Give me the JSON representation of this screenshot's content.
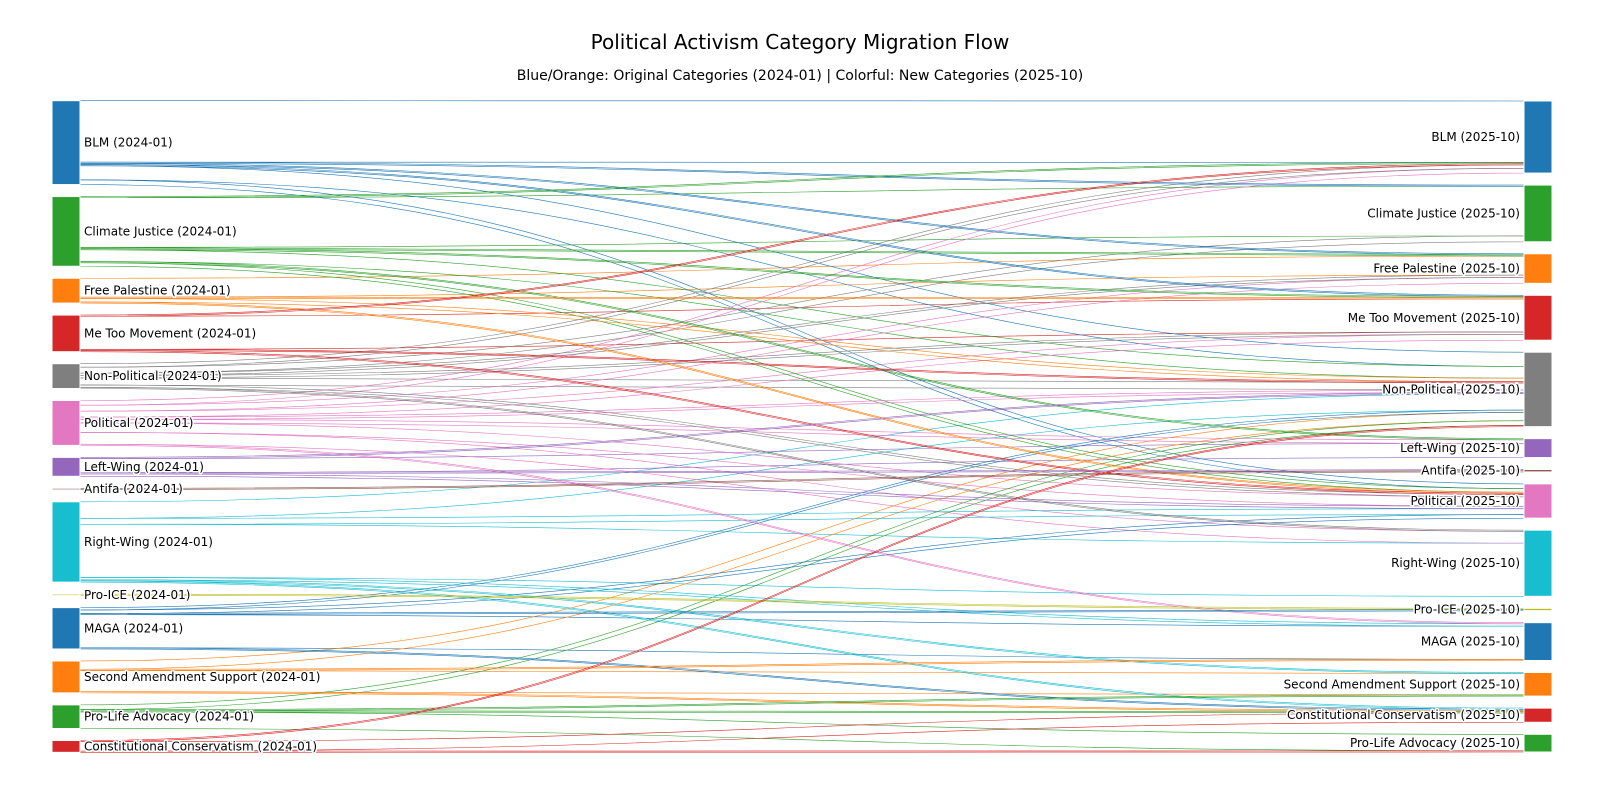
{
  "chart_data": {
    "type": "sankey",
    "title": "Political Activism Category Migration Flow",
    "subtitle": "Blue/Orange: Original Categories (2024-01) | Colorful: New Categories (2025-10)",
    "source_nodes": [
      {
        "label": "BLM (2024-01)",
        "color": "#1f77b4"
      },
      {
        "label": "Climate Justice (2024-01)",
        "color": "#2ca02c"
      },
      {
        "label": "Free Palestine (2024-01)",
        "color": "#ff7f0e"
      },
      {
        "label": "Me Too Movement (2024-01)",
        "color": "#d62728"
      },
      {
        "label": "Non-Political (2024-01)",
        "color": "#7f7f7f"
      },
      {
        "label": "Political (2024-01)",
        "color": "#e377c2"
      },
      {
        "label": "Left-Wing (2024-01)",
        "color": "#9467bd"
      },
      {
        "label": "Antifa (2024-01)",
        "color": "#8c564b"
      },
      {
        "label": "Right-Wing (2024-01)",
        "color": "#17becf"
      },
      {
        "label": "Pro-ICE (2024-01)",
        "color": "#bcbd22"
      },
      {
        "label": "MAGA (2024-01)",
        "color": "#1f77b4"
      },
      {
        "label": "Second Amendment Support (2024-01)",
        "color": "#ff7f0e"
      },
      {
        "label": "Pro-Life Advocacy (2024-01)",
        "color": "#2ca02c"
      },
      {
        "label": "Constitutional Conservatism (2024-01)",
        "color": "#d62728"
      }
    ],
    "target_nodes": [
      {
        "label": "BLM (2025-10)",
        "color": "#1f77b4"
      },
      {
        "label": "Climate Justice (2025-10)",
        "color": "#2ca02c"
      },
      {
        "label": "Free Palestine (2025-10)",
        "color": "#ff7f0e"
      },
      {
        "label": "Me Too Movement (2025-10)",
        "color": "#d62728"
      },
      {
        "label": "Non-Political (2025-10)",
        "color": "#7f7f7f"
      },
      {
        "label": "Left-Wing (2025-10)",
        "color": "#9467bd"
      },
      {
        "label": "Antifa (2025-10)",
        "color": "#8c564b"
      },
      {
        "label": "Political (2025-10)",
        "color": "#e377c2"
      },
      {
        "label": "Right-Wing (2025-10)",
        "color": "#17becf"
      },
      {
        "label": "Pro-ICE (2025-10)",
        "color": "#bcbd22"
      },
      {
        "label": "MAGA (2025-10)",
        "color": "#1f77b4"
      },
      {
        "label": "Second Amendment Support (2025-10)",
        "color": "#ff7f0e"
      },
      {
        "label": "Constitutional Conservatism (2025-10)",
        "color": "#d62728"
      },
      {
        "label": "Pro-Life Advocacy (2025-10)",
        "color": "#2ca02c"
      }
    ],
    "links": [
      {
        "source": 0,
        "target": 0,
        "value": 52
      },
      {
        "source": 0,
        "target": 4,
        "value": 12
      },
      {
        "source": 0,
        "target": 7,
        "value": 4
      },
      {
        "source": 0,
        "target": 1,
        "value": 1
      },
      {
        "source": 0,
        "target": 3,
        "value": 1
      },
      {
        "source": 0,
        "target": 2,
        "value": 1
      },
      {
        "source": 1,
        "target": 1,
        "value": 42
      },
      {
        "source": 1,
        "target": 4,
        "value": 10
      },
      {
        "source": 1,
        "target": 7,
        "value": 3
      },
      {
        "source": 1,
        "target": 5,
        "value": 1
      },
      {
        "source": 1,
        "target": 0,
        "value": 1
      },
      {
        "source": 1,
        "target": 2,
        "value": 1
      },
      {
        "source": 1,
        "target": 3,
        "value": 1
      },
      {
        "source": 2,
        "target": 2,
        "value": 16
      },
      {
        "source": 2,
        "target": 4,
        "value": 3
      },
      {
        "source": 2,
        "target": 7,
        "value": 1
      },
      {
        "source": 2,
        "target": 3,
        "value": 1
      },
      {
        "source": 3,
        "target": 3,
        "value": 28
      },
      {
        "source": 3,
        "target": 4,
        "value": 1
      },
      {
        "source": 3,
        "target": 7,
        "value": 1
      },
      {
        "source": 3,
        "target": 0,
        "value": 1
      },
      {
        "source": 4,
        "target": 1,
        "value": 5
      },
      {
        "source": 4,
        "target": 2,
        "value": 2
      },
      {
        "source": 4,
        "target": 0,
        "value": 3
      },
      {
        "source": 4,
        "target": 3,
        "value": 2
      },
      {
        "source": 4,
        "target": 4,
        "value": 6
      },
      {
        "source": 4,
        "target": 7,
        "value": 2
      },
      {
        "source": 4,
        "target": 8,
        "value": 1
      },
      {
        "source": 5,
        "target": 0,
        "value": 4
      },
      {
        "source": 5,
        "target": 2,
        "value": 5
      },
      {
        "source": 5,
        "target": 3,
        "value": 5
      },
      {
        "source": 5,
        "target": 7,
        "value": 8
      },
      {
        "source": 5,
        "target": 5,
        "value": 3
      },
      {
        "source": 5,
        "target": 4,
        "value": 2
      },
      {
        "source": 5,
        "target": 8,
        "value": 10
      },
      {
        "source": 5,
        "target": 10,
        "value": 1
      },
      {
        "source": 6,
        "target": 5,
        "value": 12
      },
      {
        "source": 6,
        "target": 6,
        "value": 1
      },
      {
        "source": 6,
        "target": 7,
        "value": 2
      },
      {
        "source": 6,
        "target": 4,
        "value": 1
      },
      {
        "source": 7,
        "target": 6,
        "value": 1
      },
      {
        "source": 8,
        "target": 8,
        "value": 45
      },
      {
        "source": 8,
        "target": 4,
        "value": 14
      },
      {
        "source": 8,
        "target": 7,
        "value": 5
      },
      {
        "source": 8,
        "target": 10,
        "value": 2
      },
      {
        "source": 8,
        "target": 11,
        "value": 1
      },
      {
        "source": 8,
        "target": 12,
        "value": 1
      },
      {
        "source": 9,
        "target": 9,
        "value": 1
      },
      {
        "source": 10,
        "target": 10,
        "value": 28
      },
      {
        "source": 10,
        "target": 4,
        "value": 2
      },
      {
        "source": 10,
        "target": 7,
        "value": 3
      },
      {
        "source": 10,
        "target": 9,
        "value": 1
      },
      {
        "source": 10,
        "target": 12,
        "value": 1
      },
      {
        "source": 11,
        "target": 11,
        "value": 18
      },
      {
        "source": 11,
        "target": 4,
        "value": 7
      },
      {
        "source": 11,
        "target": 12,
        "value": 1
      },
      {
        "source": 11,
        "target": 10,
        "value": 1
      },
      {
        "source": 12,
        "target": 13,
        "value": 14
      },
      {
        "source": 12,
        "target": 4,
        "value": 4
      },
      {
        "source": 12,
        "target": 12,
        "value": 1
      },
      {
        "source": 12,
        "target": 11,
        "value": 1
      },
      {
        "source": 13,
        "target": 12,
        "value": 8
      },
      {
        "source": 13,
        "target": 13,
        "value": 1
      },
      {
        "source": 13,
        "target": 4,
        "value": 1
      }
    ]
  }
}
